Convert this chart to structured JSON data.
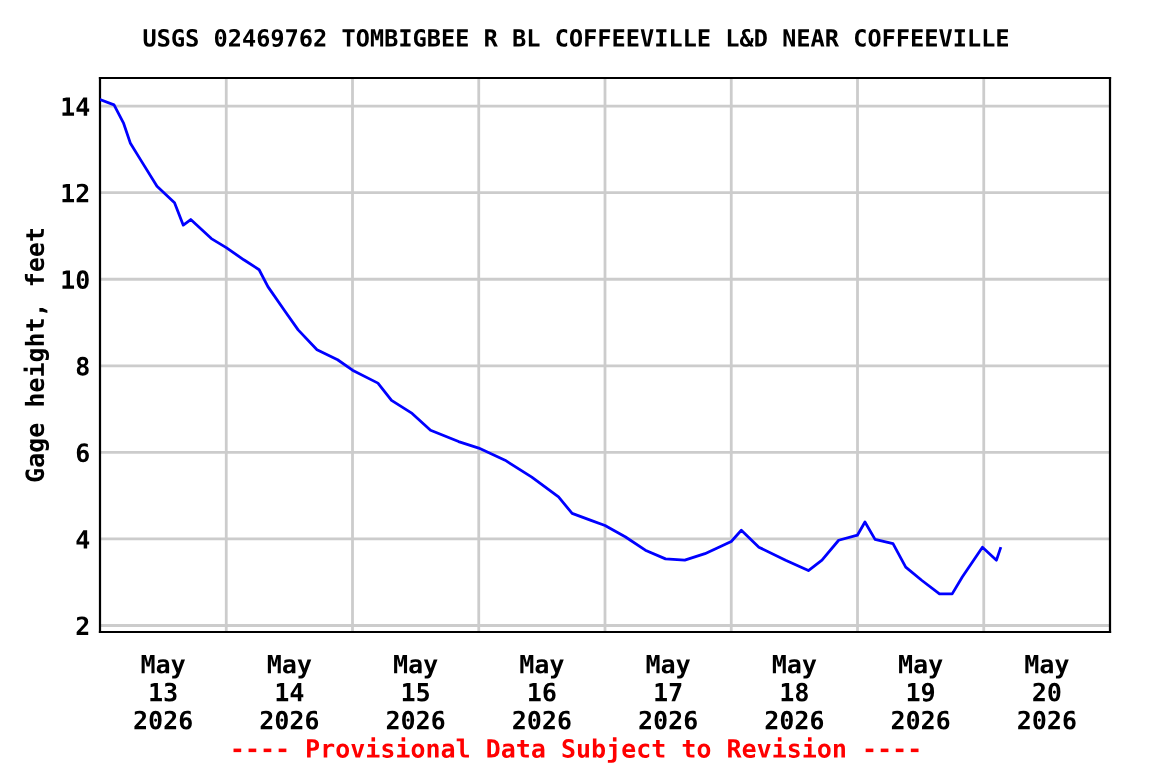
{
  "chart_data": {
    "type": "line",
    "title": "USGS 02469762 TOMBIGBEE R BL COFFEEVILLE L&D NEAR COFFEEVILLE",
    "ylabel": "Gage height, feet",
    "annotations": [
      "---- Provisional Data Subject to Revision ----"
    ],
    "series": [
      {
        "color": "#0000ff",
        "x": [
          "2026-05-13T00:00",
          "2026-05-13T02:40",
          "2026-05-13T04:30",
          "2026-05-13T05:45",
          "2026-05-13T07:40",
          "2026-05-13T10:50",
          "2026-05-13T14:10",
          "2026-05-13T15:50",
          "2026-05-13T17:15",
          "2026-05-13T21:10",
          "2026-05-14T00:00",
          "2026-05-14T03:20",
          "2026-05-14T06:15",
          "2026-05-14T07:55",
          "2026-05-14T11:00",
          "2026-05-14T13:40",
          "2026-05-14T17:15",
          "2026-05-14T21:10",
          "2026-05-15T00:00",
          "2026-05-15T04:50",
          "2026-05-15T07:25",
          "2026-05-15T11:20",
          "2026-05-15T14:50",
          "2026-05-15T20:10",
          "2026-05-16T00:00",
          "2026-05-16T05:00",
          "2026-05-16T10:05",
          "2026-05-16T15:10",
          "2026-05-16T17:45",
          "2026-05-16T21:20",
          "2026-05-17T00:00",
          "2026-05-17T03:50",
          "2026-05-17T07:40",
          "2026-05-17T11:30",
          "2026-05-17T15:10",
          "2026-05-17T19:00",
          "2026-05-18T00:00",
          "2026-05-18T01:55",
          "2026-05-18T05:15",
          "2026-05-18T10:20",
          "2026-05-18T14:40",
          "2026-05-18T17:15",
          "2026-05-18T20:25",
          "2026-05-19T00:00",
          "2026-05-19T01:25",
          "2026-05-19T03:20",
          "2026-05-19T06:45",
          "2026-05-19T09:10",
          "2026-05-19T12:15",
          "2026-05-19T15:35",
          "2026-05-19T18:00",
          "2026-05-19T19:55",
          "2026-05-19T23:45",
          "2026-05-20T02:25",
          "2026-05-20T03:10"
        ],
        "values": [
          14.15,
          14.03,
          13.6,
          13.15,
          12.77,
          12.15,
          11.77,
          11.25,
          11.38,
          10.94,
          10.73,
          10.45,
          10.22,
          9.83,
          9.29,
          8.83,
          8.37,
          8.14,
          7.9,
          7.6,
          7.2,
          6.9,
          6.51,
          6.25,
          6.1,
          5.82,
          5.43,
          4.97,
          4.59,
          4.43,
          4.31,
          4.05,
          3.74,
          3.54,
          3.51,
          3.66,
          3.94,
          4.2,
          3.81,
          3.51,
          3.27,
          3.51,
          3.97,
          4.09,
          4.39,
          3.99,
          3.89,
          3.35,
          3.04,
          2.73,
          2.73,
          3.12,
          3.81,
          3.51,
          3.78
        ]
      }
    ],
    "xlim": [
      "2026-05-13",
      "2026-05-21"
    ],
    "xticks": [
      {
        "value": "2026-05-13T12:00",
        "label": "May\n13\n2026"
      },
      {
        "value": "2026-05-14T12:00",
        "label": "May\n14\n2026"
      },
      {
        "value": "2026-05-15T12:00",
        "label": "May\n15\n2026"
      },
      {
        "value": "2026-05-16T12:00",
        "label": "May\n16\n2026"
      },
      {
        "value": "2026-05-17T12:00",
        "label": "May\n17\n2026"
      },
      {
        "value": "2026-05-18T12:00",
        "label": "May\n18\n2026"
      },
      {
        "value": "2026-05-19T12:00",
        "label": "May\n19\n2026"
      },
      {
        "value": "2026-05-20T12:00",
        "label": "May\n20\n2026"
      },
      {
        "value": "2026-05-14",
        "label": null
      },
      {
        "value": "2026-05-15",
        "label": null
      },
      {
        "value": "2026-05-16",
        "label": null
      },
      {
        "value": "2026-05-17",
        "label": null
      },
      {
        "value": "2026-05-18",
        "label": null
      },
      {
        "value": "2026-05-19",
        "label": null
      },
      {
        "value": "2026-05-20",
        "label": null
      }
    ],
    "ylim": [
      1.85,
      14.65
    ],
    "yticks": [
      2,
      4,
      6,
      8,
      10,
      12,
      14
    ],
    "grid": true,
    "legend": false,
    "marker": "none",
    "line_style": "solid"
  }
}
